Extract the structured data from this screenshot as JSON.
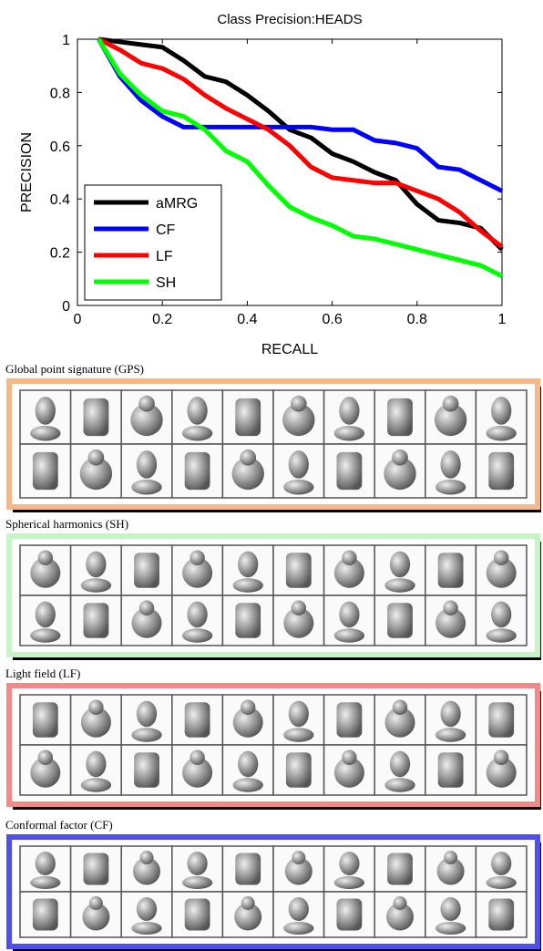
{
  "chart_data": {
    "type": "line",
    "title": "Class Precision:HEADS",
    "x_label": "RECALL",
    "y_label": "PRECISION",
    "x": [
      0.05,
      0.1,
      0.15,
      0.2,
      0.25,
      0.3,
      0.35,
      0.4,
      0.45,
      0.5,
      0.55,
      0.6,
      0.65,
      0.7,
      0.75,
      0.8,
      0.85,
      0.9,
      0.95,
      1
    ],
    "series": [
      {
        "name": "aMRG",
        "color": "#000000",
        "values": [
          1,
          0.99,
          0.98,
          0.97,
          0.92,
          0.86,
          0.84,
          0.79,
          0.73,
          0.66,
          0.63,
          0.57,
          0.54,
          0.5,
          0.47,
          0.38,
          0.32,
          0.31,
          0.29,
          0.21
        ]
      },
      {
        "name": "CF",
        "color": "#0000ff",
        "values": [
          1,
          0.86,
          0.77,
          0.71,
          0.67,
          0.67,
          0.67,
          0.67,
          0.67,
          0.67,
          0.67,
          0.66,
          0.66,
          0.62,
          0.61,
          0.59,
          0.52,
          0.51,
          0.47,
          0.43
        ]
      },
      {
        "name": "LF",
        "color": "#ff0000",
        "values": [
          1,
          0.96,
          0.91,
          0.89,
          0.85,
          0.79,
          0.74,
          0.7,
          0.66,
          0.6,
          0.52,
          0.48,
          0.47,
          0.46,
          0.46,
          0.43,
          0.4,
          0.35,
          0.28,
          0.22
        ]
      },
      {
        "name": "SH",
        "color": "#00ff00",
        "values": [
          1,
          0.87,
          0.79,
          0.73,
          0.71,
          0.66,
          0.58,
          0.54,
          0.45,
          0.37,
          0.33,
          0.3,
          0.26,
          0.25,
          0.23,
          0.21,
          0.19,
          0.17,
          0.15,
          0.11
        ]
      }
    ],
    "xlim": [
      0,
      1
    ],
    "ylim": [
      0,
      1
    ],
    "xticks": [
      0,
      0.2,
      0.4,
      0.6,
      0.8,
      1
    ],
    "yticks": [
      0,
      0.2,
      0.4,
      0.6,
      0.8,
      1
    ],
    "legend": "lower-left"
  },
  "panels": [
    {
      "title": "Global point signature (GPS)"
    },
    {
      "title": "Spherical harmonics (SH)"
    },
    {
      "title": "Light field (LF)"
    },
    {
      "title": "Conformal factor (CF)"
    }
  ]
}
